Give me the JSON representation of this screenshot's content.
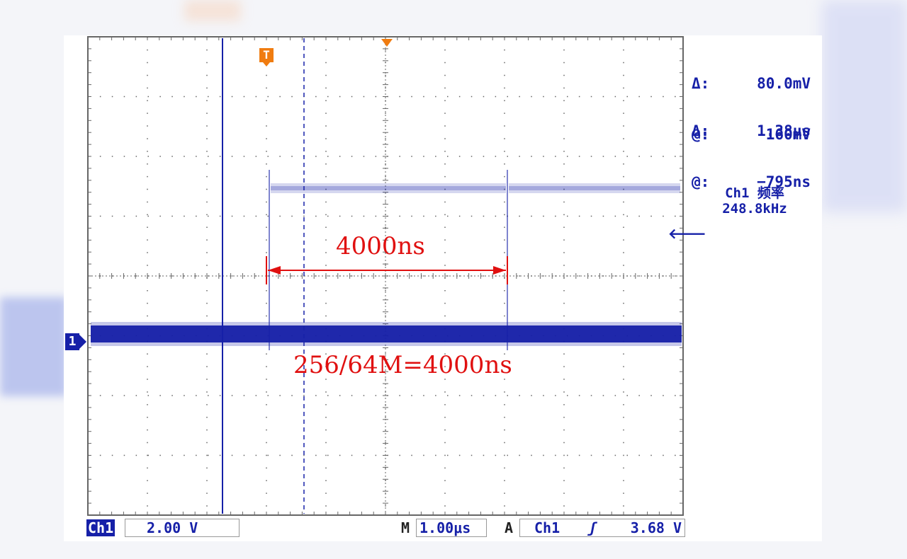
{
  "cursors": {
    "amplitude": {
      "delta_label": "Δ:",
      "delta_value": "80.0mV",
      "at_label": "@:",
      "at_value": "160mV"
    },
    "time": {
      "delta_label": "Δ:",
      "delta_value": "1.38μs",
      "at_label": "@:",
      "at_value": "−795ns"
    }
  },
  "measurement": {
    "label": "Ch1 频率",
    "value": "248.8kHz"
  },
  "annotations": {
    "period_label": "4000ns",
    "formula": "256/64M=4000ns"
  },
  "status_bar": {
    "channel": "Ch1",
    "volts_per_div": "2.00 V",
    "timebase_prefix": "M",
    "timebase": "1.00μs",
    "trigger_prefix": "A",
    "trigger_source": "Ch1",
    "trigger_slope": "ʃ",
    "trigger_level": "3.68 V"
  },
  "markers": {
    "channel_marker": "1",
    "trigger_marker": "T"
  },
  "colors": {
    "trace": "#1620a8",
    "grid": "#666666",
    "annotation": "#e01010",
    "trigger": "#f07c10"
  },
  "icons": {
    "level_arrow": "arrow-left-icon",
    "slope": "rising-edge-icon"
  }
}
